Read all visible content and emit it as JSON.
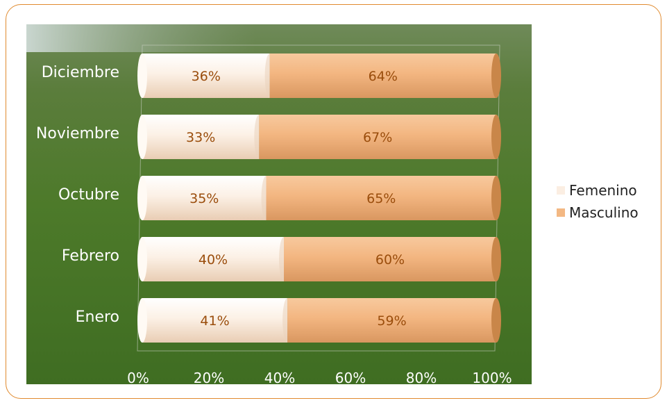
{
  "chart_data": {
    "type": "bar",
    "orientation": "horizontal",
    "stacked": "percent",
    "categories": [
      "Enero",
      "Febrero",
      "Octubre",
      "Noviembre",
      "Diciembre"
    ],
    "series": [
      {
        "name": "Femenino",
        "values": [
          41,
          40,
          35,
          33,
          36
        ],
        "labels": [
          "41%",
          "40%",
          "35%",
          "33%",
          "36%"
        ],
        "color": "#fbeee2"
      },
      {
        "name": "Masculino",
        "values": [
          59,
          60,
          65,
          67,
          64
        ],
        "labels": [
          "59%",
          "60%",
          "65%",
          "67%",
          "64%"
        ],
        "color": "#f3b883"
      }
    ],
    "xticks": [
      "0%",
      "20%",
      "40%",
      "60%",
      "80%",
      "100%"
    ],
    "xlim": [
      0,
      100
    ],
    "grid": false,
    "legend": "right",
    "background": "photo"
  }
}
